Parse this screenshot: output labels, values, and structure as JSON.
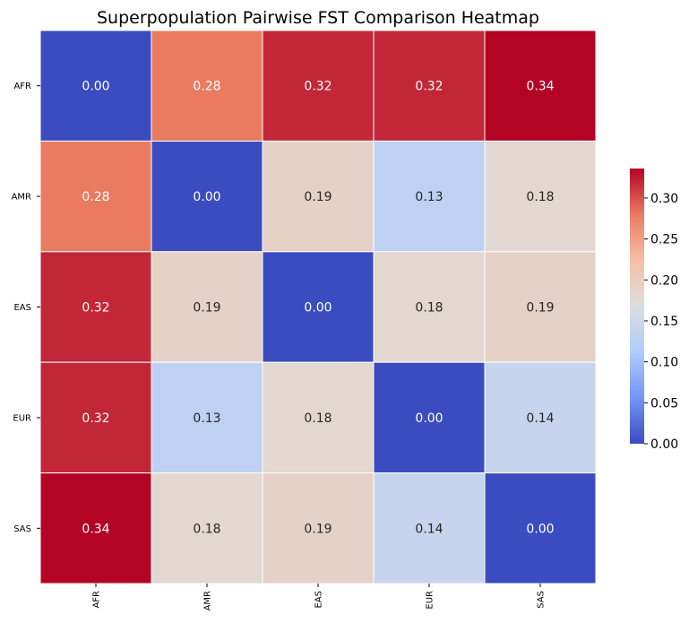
{
  "chart_data": {
    "type": "heatmap",
    "title": "Superpopulation Pairwise FST Comparison Heatmap",
    "xlabel": "",
    "ylabel": "",
    "x_categories": [
      "AFR",
      "AMR",
      "EAS",
      "EUR",
      "SAS"
    ],
    "y_categories": [
      "AFR",
      "AMR",
      "EAS",
      "EUR",
      "SAS"
    ],
    "values": [
      [
        0.0,
        0.28,
        0.32,
        0.32,
        0.34
      ],
      [
        0.28,
        0.0,
        0.19,
        0.13,
        0.18
      ],
      [
        0.32,
        0.19,
        0.0,
        0.18,
        0.19
      ],
      [
        0.32,
        0.13,
        0.18,
        0.0,
        0.14
      ],
      [
        0.34,
        0.18,
        0.19,
        0.14,
        0.0
      ]
    ],
    "annotation_format": "0.00",
    "colormap": "coolwarm",
    "colormap_stops": [
      "#3b4cc0",
      "#7396f5",
      "#b0cbfc",
      "#dcdddd",
      "#f6bfa6",
      "#ea7b60",
      "#b40426"
    ],
    "colorbar": {
      "range": [
        0.0,
        0.336
      ],
      "ticks": [
        "0.00",
        "0.05",
        "0.10",
        "0.15",
        "0.20",
        "0.25",
        "0.30"
      ],
      "placement": "right"
    },
    "grid_line_color": "#ffffff"
  }
}
